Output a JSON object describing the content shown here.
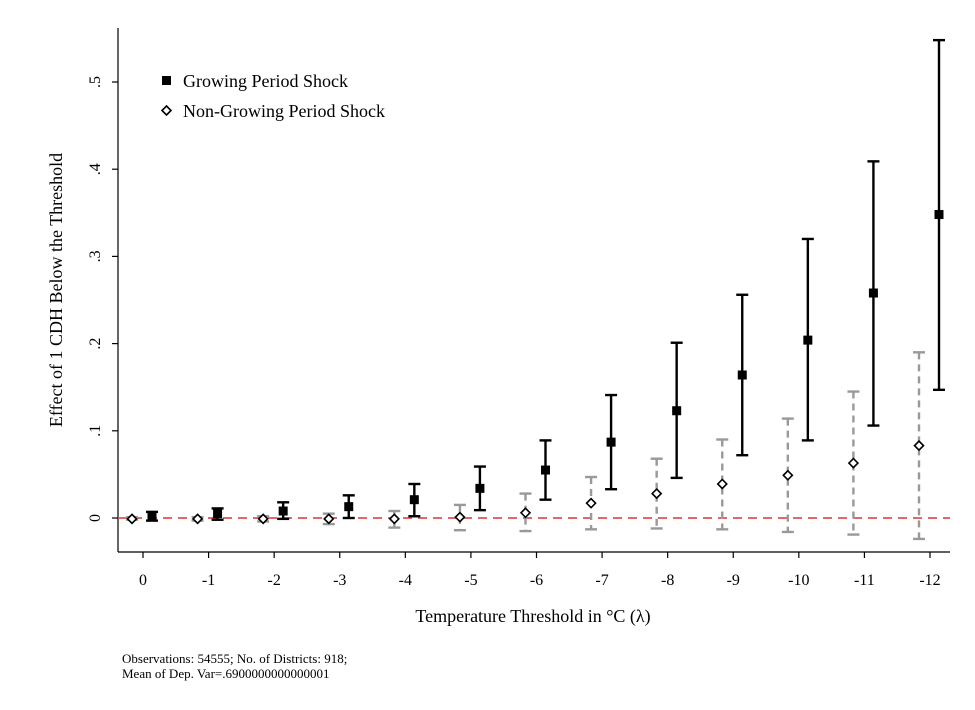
{
  "chart_data": {
    "type": "scatter",
    "x_categories": [
      "0",
      "-1",
      "-2",
      "-3",
      "-4",
      "-5",
      "-6",
      "-7",
      "-8",
      "-9",
      "-10",
      "-11",
      "-12"
    ],
    "xlabel": "Temperature Threshold in °C (λ)",
    "ylabel": "Effect of 1 CDH Below the Threshold",
    "y_ticks": [
      0,
      0.1,
      0.2,
      0.3,
      0.4,
      0.5
    ],
    "y_tick_labels": [
      "0",
      ".1",
      ".2",
      ".3",
      ".4",
      ".5"
    ],
    "ylim": [
      -0.04,
      0.56
    ],
    "reference_line": {
      "y": 0,
      "color": "#e05050",
      "style": "dashed"
    },
    "legend_position": "top-left",
    "series": [
      {
        "name": "Growing Period Shock",
        "marker": "square",
        "color": "#000000",
        "errorbar_style": "solid",
        "values": [
          0.003,
          0.005,
          0.008,
          0.013,
          0.021,
          0.034,
          0.055,
          0.087,
          0.123,
          0.164,
          0.204,
          0.258,
          0.348
        ],
        "ci_low": [
          -0.003,
          -0.002,
          -0.001,
          0.0,
          0.002,
          0.009,
          0.021,
          0.033,
          0.046,
          0.072,
          0.089,
          0.106,
          0.147
        ],
        "ci_high": [
          0.007,
          0.011,
          0.018,
          0.026,
          0.039,
          0.059,
          0.089,
          0.141,
          0.201,
          0.256,
          0.32,
          0.409,
          0.548
        ]
      },
      {
        "name": "Non-Growing Period Shock",
        "marker": "diamond",
        "color": "#000000",
        "errorbar_color": "#999999",
        "errorbar_style": "dashed",
        "values": [
          -0.001,
          -0.001,
          -0.001,
          -0.001,
          -0.001,
          0.001,
          0.006,
          0.017,
          0.028,
          0.039,
          0.049,
          0.063,
          0.083
        ],
        "ci_low": [
          -0.002,
          -0.003,
          -0.004,
          -0.007,
          -0.011,
          -0.014,
          -0.015,
          -0.013,
          -0.012,
          -0.013,
          -0.016,
          -0.019,
          -0.024
        ],
        "ci_high": [
          0.001,
          0.001,
          0.002,
          0.005,
          0.008,
          0.015,
          0.028,
          0.047,
          0.068,
          0.09,
          0.114,
          0.145,
          0.19
        ]
      }
    ]
  },
  "notes": {
    "line1": "Observations: 54555; No. of Districts: 918;",
    "line2": "Mean of Dep. Var=.6900000000000001"
  }
}
